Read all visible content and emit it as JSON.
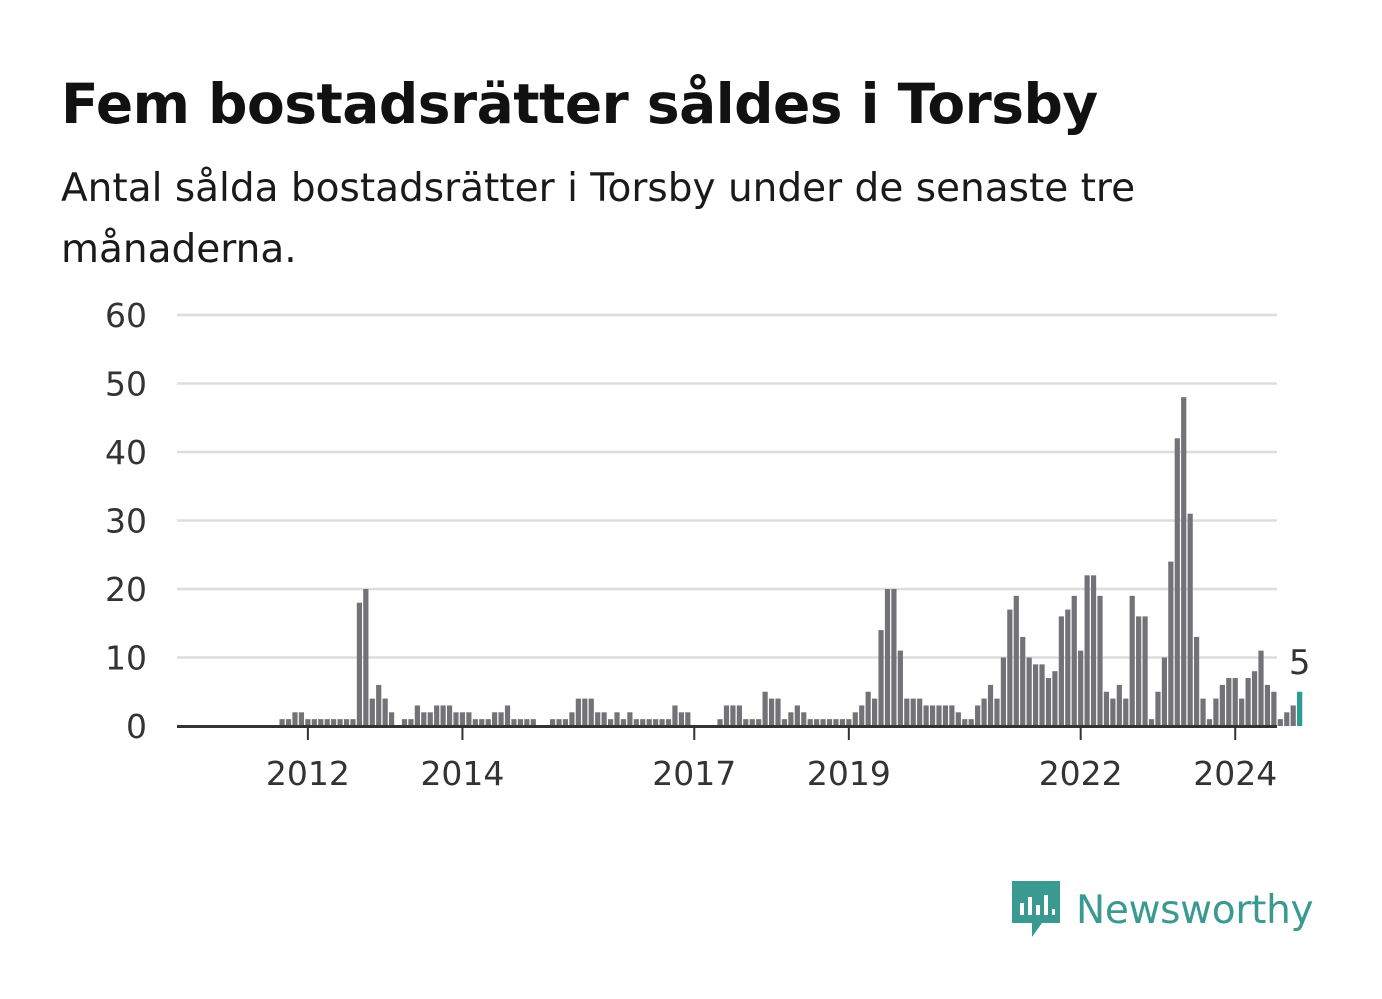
{
  "title": "Fem bostadsrätter såldes i Torsby",
  "subtitle": "Antal sålda bostadsrätter i Torsby under de senaste tre månaderna.",
  "brand": {
    "name": "Newsworthy",
    "icon": "newsworthy-logo-icon",
    "color": "#3a9990"
  },
  "colors": {
    "bar": "#737276",
    "highlight": "#2a9d96",
    "grid": "#dddddd",
    "baseline": "#333333"
  },
  "chart_data": {
    "type": "bar",
    "title": "Fem bostadsrätter såldes i Torsby",
    "ylim": [
      0,
      60
    ],
    "yticks": [
      0,
      10,
      20,
      30,
      40,
      50,
      60
    ],
    "xticks": [
      "2012",
      "2014",
      "2017",
      "2019",
      "2022",
      "2024"
    ],
    "grid": true,
    "highlight": {
      "label": "5",
      "value": 5
    },
    "series": [
      {
        "values": [
          0,
          0,
          0,
          0,
          0,
          0,
          0,
          0,
          1,
          1,
          2,
          2,
          1,
          1,
          1,
          1,
          1,
          1,
          1,
          1,
          18,
          20,
          4,
          6,
          4,
          2,
          0,
          1,
          1,
          3,
          2,
          2,
          3,
          3,
          3,
          2,
          2,
          2,
          1,
          1,
          1,
          2,
          2,
          3,
          1,
          1,
          1,
          1,
          0,
          0,
          1,
          1,
          1,
          2,
          4,
          4,
          4,
          2,
          2,
          1,
          2,
          1,
          2,
          1,
          1,
          1,
          1,
          1,
          1,
          3,
          2,
          2,
          0,
          0,
          0,
          0,
          1,
          3,
          3,
          3,
          1,
          1,
          1,
          5,
          4,
          4,
          1,
          2,
          3,
          2,
          1,
          1,
          1,
          1,
          1,
          1,
          1,
          2,
          3,
          5,
          4,
          14,
          20,
          20,
          11,
          4,
          4,
          4,
          3,
          3,
          3,
          3,
          3,
          2,
          1,
          1,
          3,
          4,
          6,
          4,
          10,
          17,
          19,
          13,
          10,
          9,
          9,
          7,
          8,
          16,
          17,
          19,
          11,
          22,
          22,
          19,
          5,
          4,
          6,
          4,
          19,
          16,
          16,
          1,
          5,
          10,
          24,
          42,
          48,
          31,
          13,
          4,
          1,
          4,
          6,
          7,
          7,
          4,
          7,
          8,
          11,
          6,
          5,
          1,
          2,
          3,
          5
        ]
      }
    ]
  }
}
